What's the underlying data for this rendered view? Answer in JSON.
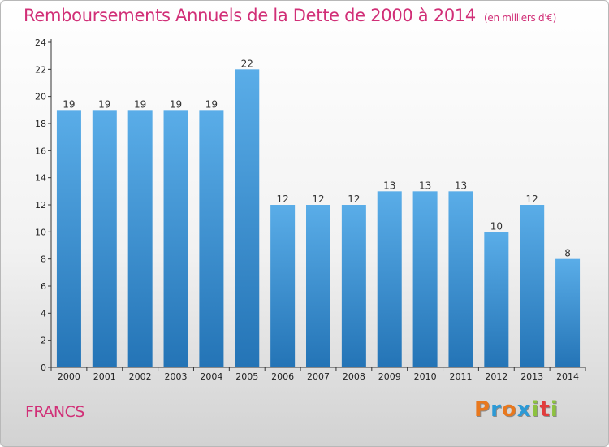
{
  "header": {
    "title": "Remboursements Annuels de la Dette de 2000 à 2014",
    "unit": "(en milliers d'€)"
  },
  "footer": {
    "label": "FRANCS",
    "logo": "Proxiti"
  },
  "colors": {
    "title": "#d12f77",
    "bar_top": "#5aade8",
    "bar_bottom": "#2474b6",
    "logo_letters": [
      "#e8781e",
      "#2c9ad6",
      "#e8781e",
      "#2c9ad6",
      "#8dc23f",
      "#e33c3c",
      "#8dc23f"
    ]
  },
  "chart_data": {
    "type": "bar",
    "categories": [
      "2000",
      "2001",
      "2002",
      "2003",
      "2004",
      "2005",
      "2006",
      "2007",
      "2008",
      "2009",
      "2010",
      "2011",
      "2012",
      "2013",
      "2014"
    ],
    "values": [
      19,
      19,
      19,
      19,
      19,
      22,
      12,
      12,
      12,
      13,
      13,
      13,
      10,
      12,
      8
    ],
    "ylim": [
      0,
      24
    ],
    "yticks": [
      0,
      2,
      4,
      6,
      8,
      10,
      12,
      14,
      16,
      18,
      20,
      22,
      24
    ],
    "grid": false,
    "data_labels": true
  }
}
